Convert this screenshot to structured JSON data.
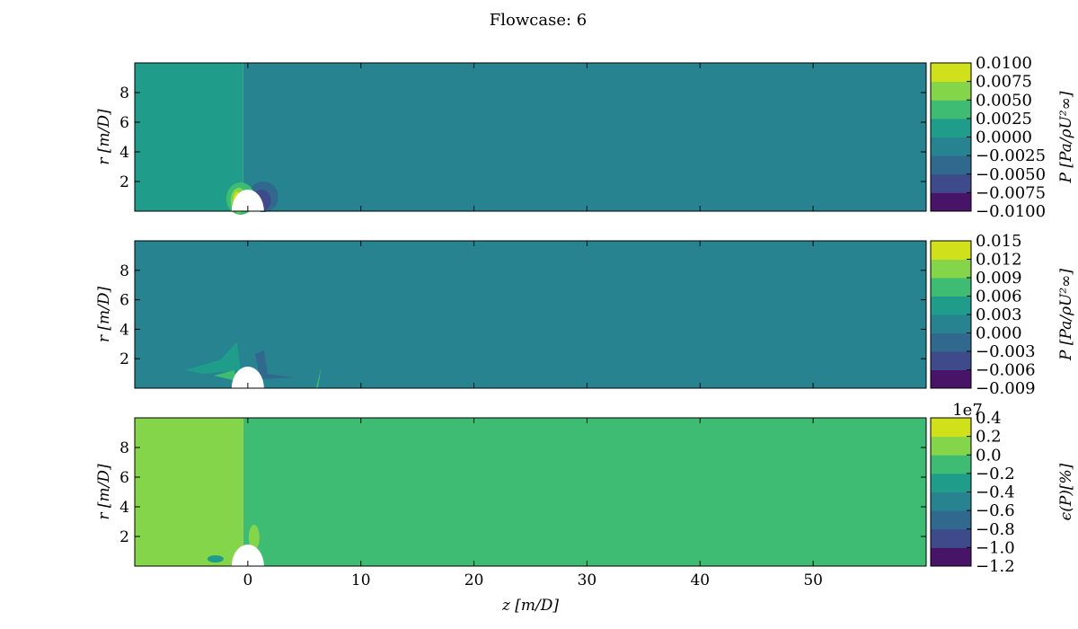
{
  "title": "Flowcase: 6",
  "chart_data": [
    {
      "type": "heatmap",
      "ylabel": "r [m/D]",
      "xlabel": "",
      "xlim": [
        -10,
        60
      ],
      "ylim": [
        0,
        10
      ],
      "yticks": [
        "2",
        "4",
        "6",
        "8"
      ],
      "xticks": [],
      "colorbar": {
        "label": "P [Pa/ρU²∞]",
        "ticks": [
          "−0.0100",
          "−0.0075",
          "−0.0050",
          "−0.0025",
          "0.0000",
          "0.0025",
          "0.0050",
          "0.0075",
          "0.0100"
        ],
        "offset_label": "",
        "colors": [
          "#481467",
          "#3e4a89",
          "#31688e",
          "#26838f",
          "#1f9d8a",
          "#3fbc73",
          "#85d54a",
          "#d0e11c"
        ]
      },
      "regions": [
        {
          "z": [
            -10,
            -0.4
          ],
          "r": [
            0,
            10
          ],
          "level": 4
        },
        {
          "z": [
            -0.4,
            60
          ],
          "r": [
            0,
            10
          ],
          "level": 3
        }
      ]
    },
    {
      "type": "heatmap",
      "ylabel": "r [m/D]",
      "xlabel": "",
      "xlim": [
        -10,
        60
      ],
      "ylim": [
        0,
        10
      ],
      "yticks": [
        "2",
        "4",
        "6",
        "8"
      ],
      "xticks": [],
      "colorbar": {
        "label": "P [Pa/ρU²∞]",
        "ticks": [
          "−0.009",
          "−0.006",
          "−0.003",
          "0.000",
          "0.003",
          "0.006",
          "0.009",
          "0.012",
          "0.015"
        ],
        "offset_label": "",
        "colors": [
          "#481467",
          "#3e4a89",
          "#31688e",
          "#26838f",
          "#1f9d8a",
          "#3fbc73",
          "#85d54a",
          "#d0e11c"
        ]
      },
      "regions": [
        {
          "z": [
            -10,
            60
          ],
          "r": [
            0,
            10
          ],
          "level": 3
        }
      ]
    },
    {
      "type": "heatmap",
      "ylabel": "r [m/D]",
      "xlabel": "z [m/D]",
      "xlim": [
        -10,
        60
      ],
      "ylim": [
        0,
        10
      ],
      "yticks": [
        "2",
        "4",
        "6",
        "8"
      ],
      "xticks": [
        "0",
        "10",
        "20",
        "30",
        "40",
        "50"
      ],
      "colorbar": {
        "label": "ϵ(P)[%]",
        "ticks": [
          "−1.2",
          "−1.0",
          "−0.8",
          "−0.6",
          "−0.4",
          "−0.2",
          "0.0",
          "0.2",
          "0.4"
        ],
        "offset_label": "1e7",
        "colors": [
          "#481467",
          "#3e4a89",
          "#31688e",
          "#26838f",
          "#1f9d8a",
          "#3fbc73",
          "#85d54a",
          "#d0e11c"
        ]
      },
      "regions": [
        {
          "z": [
            -10,
            -0.4
          ],
          "r": [
            0,
            10
          ],
          "level": 6
        },
        {
          "z": [
            -0.4,
            60
          ],
          "r": [
            0,
            10
          ],
          "level": 5
        }
      ]
    }
  ]
}
